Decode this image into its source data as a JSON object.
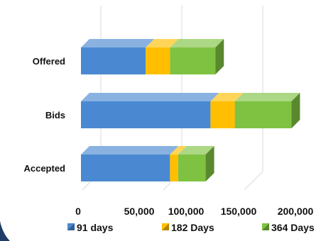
{
  "chart_data": {
    "type": "bar",
    "orientation": "horizontal",
    "stacked": true,
    "style": "3d",
    "categories": [
      "Offered",
      "Bids",
      "Accepted"
    ],
    "series": [
      {
        "name": "91 days",
        "values": [
          40000,
          80000,
          55000
        ],
        "color": "#4a89d1"
      },
      {
        "name": "182 Days",
        "values": [
          15000,
          15000,
          5000
        ],
        "color": "#ffbf00"
      },
      {
        "name": "364 Days",
        "values": [
          28000,
          35000,
          17000
        ],
        "color": "#7fc241"
      }
    ],
    "x_ticks": [
      "0",
      "50,000",
      "100,000",
      "150,000",
      "200,000"
    ],
    "xlim": [
      0,
      200000
    ],
    "grid": true,
    "legend": "bottom",
    "title": "",
    "xlabel": "",
    "ylabel": ""
  }
}
